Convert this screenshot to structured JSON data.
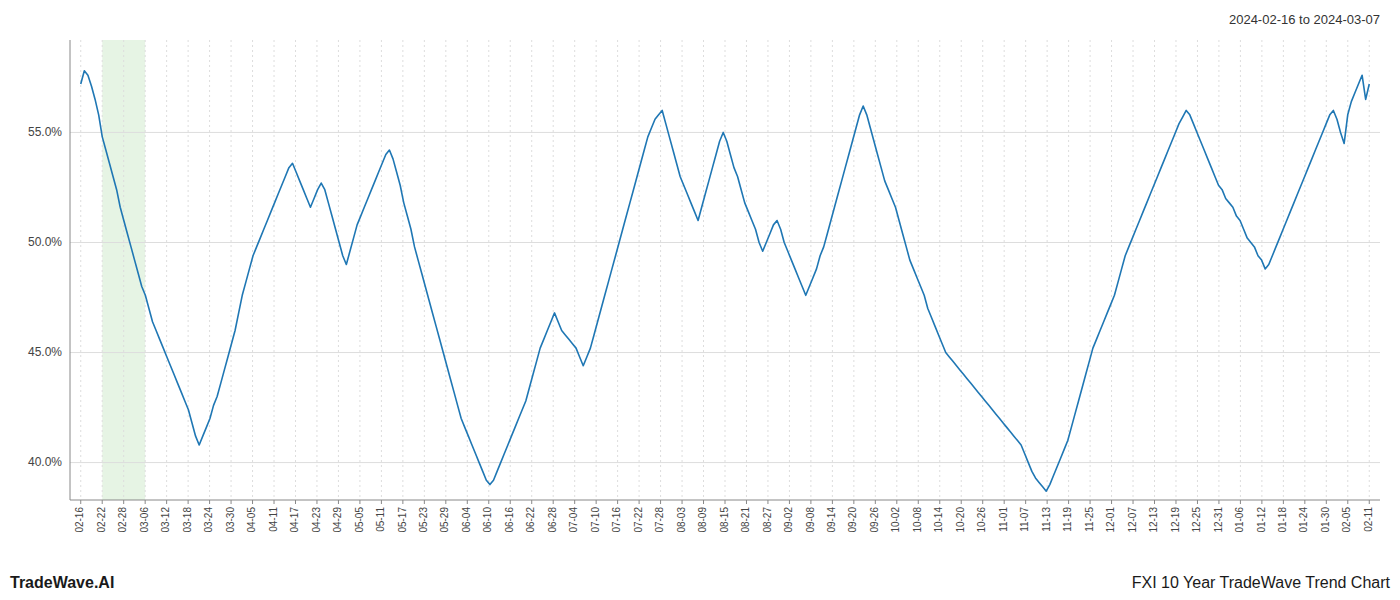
{
  "chart_data": {
    "type": "line",
    "title": "FXI 10 Year TradeWave Trend Chart",
    "subtitle": "2024-02-16 to 2024-03-07",
    "annotations": [
      "TradeWave.AI"
    ],
    "color": "#1f77b4",
    "grid": true,
    "shade": {
      "x_start": 1,
      "x_end": 3,
      "color": "#d6ecd2"
    },
    "xlim": [
      -0.5,
      60.5
    ],
    "xticks": [
      {
        "value": 0,
        "label": "02-16"
      },
      {
        "value": 1,
        "label": "02-22"
      },
      {
        "value": 2,
        "label": "02-28"
      },
      {
        "value": 3,
        "label": "03-06"
      },
      {
        "value": 4,
        "label": "03-12"
      },
      {
        "value": 5,
        "label": "03-18"
      },
      {
        "value": 6,
        "label": "03-24"
      },
      {
        "value": 7,
        "label": "03-30"
      },
      {
        "value": 8,
        "label": "04-05"
      },
      {
        "value": 9,
        "label": "04-11"
      },
      {
        "value": 10,
        "label": "04-17"
      },
      {
        "value": 11,
        "label": "04-23"
      },
      {
        "value": 12,
        "label": "04-29"
      },
      {
        "value": 13,
        "label": "05-05"
      },
      {
        "value": 14,
        "label": "05-11"
      },
      {
        "value": 15,
        "label": "05-17"
      },
      {
        "value": 16,
        "label": "05-23"
      },
      {
        "value": 17,
        "label": "05-29"
      },
      {
        "value": 18,
        "label": "06-04"
      },
      {
        "value": 19,
        "label": "06-10"
      },
      {
        "value": 20,
        "label": "06-16"
      },
      {
        "value": 21,
        "label": "06-22"
      },
      {
        "value": 22,
        "label": "06-28"
      },
      {
        "value": 23,
        "label": "07-04"
      },
      {
        "value": 24,
        "label": "07-10"
      },
      {
        "value": 25,
        "label": "07-16"
      },
      {
        "value": 26,
        "label": "07-22"
      },
      {
        "value": 27,
        "label": "07-28"
      },
      {
        "value": 28,
        "label": "08-03"
      },
      {
        "value": 29,
        "label": "08-09"
      },
      {
        "value": 30,
        "label": "08-15"
      },
      {
        "value": 31,
        "label": "08-21"
      },
      {
        "value": 32,
        "label": "08-27"
      },
      {
        "value": 33,
        "label": "09-02"
      },
      {
        "value": 34,
        "label": "09-08"
      },
      {
        "value": 35,
        "label": "09-14"
      },
      {
        "value": 36,
        "label": "09-20"
      },
      {
        "value": 37,
        "label": "09-26"
      },
      {
        "value": 38,
        "label": "10-02"
      },
      {
        "value": 39,
        "label": "10-08"
      },
      {
        "value": 40,
        "label": "10-14"
      },
      {
        "value": 41,
        "label": "10-20"
      },
      {
        "value": 42,
        "label": "10-26"
      },
      {
        "value": 43,
        "label": "11-01"
      },
      {
        "value": 44,
        "label": "11-07"
      },
      {
        "value": 45,
        "label": "11-13"
      },
      {
        "value": 46,
        "label": "11-19"
      },
      {
        "value": 47,
        "label": "11-25"
      },
      {
        "value": 48,
        "label": "12-01"
      },
      {
        "value": 49,
        "label": "12-07"
      },
      {
        "value": 50,
        "label": "12-13"
      },
      {
        "value": 51,
        "label": "12-19"
      },
      {
        "value": 52,
        "label": "12-25"
      },
      {
        "value": 53,
        "label": "12-31"
      },
      {
        "value": 54,
        "label": "01-06"
      },
      {
        "value": 55,
        "label": "01-12"
      },
      {
        "value": 56,
        "label": "01-18"
      },
      {
        "value": 57,
        "label": "01-24"
      },
      {
        "value": 58,
        "label": "01-30"
      },
      {
        "value": 59,
        "label": "02-05"
      },
      {
        "value": 60,
        "label": "02-11"
      }
    ],
    "ylim": [
      0.383,
      0.592
    ],
    "yticks": [
      {
        "value": 0.4,
        "label": "40.0%"
      },
      {
        "value": 0.45,
        "label": "45.0%"
      },
      {
        "value": 0.5,
        "label": "50.0%"
      },
      {
        "value": 0.55,
        "label": "55.0%"
      }
    ],
    "values": [
      0.572,
      0.578,
      0.576,
      0.571,
      0.565,
      0.558,
      0.548,
      0.542,
      0.536,
      0.53,
      0.524,
      0.516,
      0.51,
      0.504,
      0.498,
      0.492,
      0.486,
      0.48,
      0.476,
      0.47,
      0.464,
      0.46,
      0.456,
      0.452,
      0.448,
      0.444,
      0.44,
      0.436,
      0.432,
      0.428,
      0.424,
      0.418,
      0.412,
      0.408,
      0.412,
      0.416,
      0.42,
      0.426,
      0.43,
      0.436,
      0.442,
      0.448,
      0.454,
      0.46,
      0.468,
      0.476,
      0.482,
      0.488,
      0.494,
      0.498,
      0.502,
      0.506,
      0.51,
      0.514,
      0.518,
      0.522,
      0.526,
      0.53,
      0.534,
      0.536,
      0.532,
      0.528,
      0.524,
      0.52,
      0.516,
      0.52,
      0.524,
      0.527,
      0.524,
      0.518,
      0.512,
      0.506,
      0.5,
      0.494,
      0.49,
      0.496,
      0.502,
      0.508,
      0.512,
      0.516,
      0.52,
      0.524,
      0.528,
      0.532,
      0.536,
      0.54,
      0.542,
      0.538,
      0.532,
      0.526,
      0.518,
      0.512,
      0.506,
      0.498,
      0.492,
      0.486,
      0.48,
      0.474,
      0.468,
      0.462,
      0.456,
      0.45,
      0.444,
      0.438,
      0.432,
      0.426,
      0.42,
      0.416,
      0.412,
      0.408,
      0.404,
      0.4,
      0.396,
      0.392,
      0.39,
      0.392,
      0.396,
      0.4,
      0.404,
      0.408,
      0.412,
      0.416,
      0.42,
      0.424,
      0.428,
      0.434,
      0.44,
      0.446,
      0.452,
      0.456,
      0.46,
      0.464,
      0.468,
      0.464,
      0.46,
      0.458,
      0.456,
      0.454,
      0.452,
      0.448,
      0.444,
      0.448,
      0.452,
      0.458,
      0.464,
      0.47,
      0.476,
      0.482,
      0.488,
      0.494,
      0.5,
      0.506,
      0.512,
      0.518,
      0.524,
      0.53,
      0.536,
      0.542,
      0.548,
      0.552,
      0.556,
      0.558,
      0.56,
      0.554,
      0.548,
      0.542,
      0.536,
      0.53,
      0.526,
      0.522,
      0.518,
      0.514,
      0.51,
      0.516,
      0.522,
      0.528,
      0.534,
      0.54,
      0.546,
      0.55,
      0.546,
      0.54,
      0.534,
      0.53,
      0.524,
      0.518,
      0.514,
      0.51,
      0.506,
      0.5,
      0.496,
      0.5,
      0.504,
      0.508,
      0.51,
      0.506,
      0.5,
      0.496,
      0.492,
      0.488,
      0.484,
      0.48,
      0.476,
      0.48,
      0.484,
      0.488,
      0.494,
      0.498,
      0.504,
      0.51,
      0.516,
      0.522,
      0.528,
      0.534,
      0.54,
      0.546,
      0.552,
      0.558,
      0.562,
      0.558,
      0.552,
      0.546,
      0.54,
      0.534,
      0.528,
      0.524,
      0.52,
      0.516,
      0.51,
      0.504,
      0.498,
      0.492,
      0.488,
      0.484,
      0.48,
      0.476,
      0.47,
      0.466,
      0.462,
      0.458,
      0.454,
      0.45,
      0.448,
      0.446,
      0.444,
      0.442,
      0.44,
      0.438,
      0.436,
      0.434,
      0.432,
      0.43,
      0.428,
      0.426,
      0.424,
      0.422,
      0.42,
      0.418,
      0.416,
      0.414,
      0.412,
      0.41,
      0.408,
      0.404,
      0.4,
      0.396,
      0.393,
      0.391,
      0.389,
      0.387,
      0.39,
      0.394,
      0.398,
      0.402,
      0.406,
      0.41,
      0.416,
      0.422,
      0.428,
      0.434,
      0.44,
      0.446,
      0.452,
      0.456,
      0.46,
      0.464,
      0.468,
      0.472,
      0.476,
      0.482,
      0.488,
      0.494,
      0.498,
      0.502,
      0.506,
      0.51,
      0.514,
      0.518,
      0.522,
      0.526,
      0.53,
      0.534,
      0.538,
      0.542,
      0.546,
      0.55,
      0.554,
      0.557,
      0.56,
      0.558,
      0.554,
      0.55,
      0.546,
      0.542,
      0.538,
      0.534,
      0.53,
      0.526,
      0.524,
      0.52,
      0.518,
      0.516,
      0.512,
      0.51,
      0.506,
      0.502,
      0.5,
      0.498,
      0.494,
      0.492,
      0.488,
      0.49,
      0.494,
      0.498,
      0.502,
      0.506,
      0.51,
      0.514,
      0.518,
      0.522,
      0.526,
      0.53,
      0.534,
      0.538,
      0.542,
      0.546,
      0.55,
      0.554,
      0.558,
      0.56,
      0.556,
      0.55,
      0.545,
      0.558,
      0.564,
      0.568,
      0.572,
      0.576,
      0.565,
      0.572
    ]
  }
}
